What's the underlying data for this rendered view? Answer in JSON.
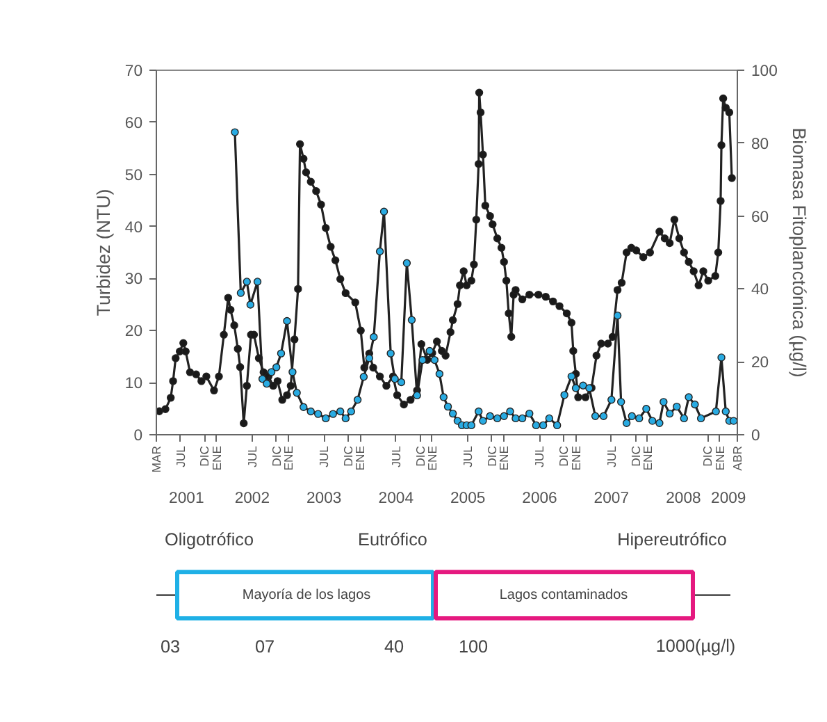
{
  "chart_data": [
    {
      "type": "line",
      "ylabel": "Turbidez (NTU)",
      "y2label": "Biomasa Fitoplanctónica (µg/l)",
      "marker": "circle",
      "xlim": [
        "2001-03-01",
        "2009-04-01"
      ],
      "xticks": [
        {
          "value": "2001-03-01",
          "label": "MAR"
        },
        {
          "value": "2001-07-01",
          "label": "JUL"
        },
        {
          "value": "2001-11-01",
          "label": "DIC"
        },
        {
          "value": "2002-01-01",
          "label": "ENE"
        },
        {
          "value": "2002-07-01",
          "label": "JUL"
        },
        {
          "value": "2002-11-01",
          "label": "DIC"
        },
        {
          "value": "2003-01-01",
          "label": "ENE"
        },
        {
          "value": "2003-07-01",
          "label": "JUL"
        },
        {
          "value": "2003-11-01",
          "label": "DIC"
        },
        {
          "value": "2004-01-01",
          "label": "ENE"
        },
        {
          "value": "2004-07-01",
          "label": "JUL"
        },
        {
          "value": "2004-11-01",
          "label": "DIC"
        },
        {
          "value": "2005-01-01",
          "label": "ENE"
        },
        {
          "value": "2005-07-01",
          "label": "JUL"
        },
        {
          "value": "2005-11-01",
          "label": "DIC"
        },
        {
          "value": "2006-01-01",
          "label": "ENE"
        },
        {
          "value": "2006-07-01",
          "label": "JUL"
        },
        {
          "value": "2006-11-01",
          "label": "DIC"
        },
        {
          "value": "2007-01-01",
          "label": "ENE"
        },
        {
          "value": "2007-07-01",
          "label": "JUL"
        },
        {
          "value": "2007-11-01",
          "label": "DIC"
        },
        {
          "value": "2008-01-01",
          "label": "ENE"
        },
        {
          "value": "2008-11-01",
          "label": "DIC"
        },
        {
          "value": "2009-01-01",
          "label": "ENE"
        },
        {
          "value": "2009-04-01",
          "label": "ABR"
        }
      ],
      "x2lim": [
        "2001-03-01",
        "2009-04-01"
      ],
      "x2ticks": [
        {
          "value": "2001-08-01",
          "label": "2001"
        },
        {
          "value": "2002-07-01",
          "label": "2002"
        },
        {
          "value": "2003-07-01",
          "label": "2003"
        },
        {
          "value": "2004-07-01",
          "label": "2004"
        },
        {
          "value": "2005-07-01",
          "label": "2005"
        },
        {
          "value": "2006-07-01",
          "label": "2006"
        },
        {
          "value": "2007-07-01",
          "label": "2007"
        },
        {
          "value": "2008-07-01",
          "label": "2008"
        },
        {
          "value": "2009-02-15",
          "label": "2009"
        }
      ],
      "ylim": [
        0,
        70
      ],
      "yticks": [
        0,
        10,
        20,
        30,
        40,
        50,
        60,
        70
      ],
      "y2lim": [
        0,
        100
      ],
      "y2ticks": [
        0,
        20,
        40,
        60,
        80,
        100
      ],
      "series": [
        {
          "color": "#1a1a1a",
          "x": [
            "2001-03-16",
            "2001-04-16",
            "2001-05-13",
            "2001-05-25",
            "2001-06-07",
            "2001-06-28",
            "2001-07-16",
            "2001-07-28",
            "2001-08-19",
            "2001-09-19",
            "2001-10-16",
            "2001-11-10",
            "2001-12-19",
            "2002-01-13",
            "2002-02-07",
            "2002-03-01",
            "2002-03-13",
            "2002-04-01",
            "2002-04-19",
            "2002-05-01",
            "2002-05-19",
            "2002-06-04",
            "2002-06-25",
            "2002-07-10",
            "2002-08-04",
            "2002-08-28",
            "2002-09-22",
            "2002-10-16",
            "2002-11-07",
            "2002-12-01",
            "2002-12-25",
            "2003-01-13",
            "2003-02-01",
            "2003-02-19",
            "2003-03-01",
            "2003-03-19",
            "2003-04-01",
            "2003-04-25",
            "2003-05-22",
            "2003-06-16",
            "2003-07-10",
            "2003-08-04",
            "2003-08-28",
            "2003-09-22",
            "2003-10-19",
            "2003-12-07",
            "2004-01-04",
            "2004-01-22",
            "2004-02-16",
            "2004-03-07",
            "2004-04-10",
            "2004-05-13",
            "2004-06-16",
            "2004-07-07",
            "2004-08-10",
            "2004-09-13",
            "2004-10-16",
            "2004-11-07",
            "2004-12-07",
            "2005-01-01",
            "2005-01-25",
            "2005-02-19",
            "2005-03-10",
            "2005-04-04",
            "2005-04-16",
            "2005-05-10",
            "2005-05-22",
            "2005-06-10",
            "2005-06-25",
            "2005-07-19",
            "2005-08-01",
            "2005-08-13",
            "2005-08-25",
            "2005-08-28",
            "2005-09-04",
            "2005-09-16",
            "2005-09-28",
            "2005-10-22",
            "2005-11-04",
            "2005-11-28",
            "2005-12-19",
            "2006-01-01",
            "2006-01-13",
            "2006-01-25",
            "2006-02-07",
            "2006-02-19",
            "2006-03-01",
            "2006-04-04",
            "2006-05-10",
            "2006-06-25",
            "2006-08-01",
            "2006-09-07",
            "2006-10-10",
            "2006-11-16",
            "2006-12-10",
            "2006-12-19",
            "2007-01-01",
            "2007-01-13",
            "2007-02-19",
            "2007-03-22",
            "2007-04-16",
            "2007-05-10",
            "2007-06-13",
            "2007-07-07",
            "2007-08-01",
            "2007-08-22",
            "2007-09-16",
            "2007-10-10",
            "2007-11-04",
            "2007-12-10",
            "2008-01-13",
            "2008-03-01",
            "2008-03-28",
            "2008-04-22",
            "2008-05-16",
            "2008-06-10",
            "2008-07-04",
            "2008-07-28",
            "2008-08-22",
            "2008-09-16",
            "2008-10-10",
            "2008-11-04",
            "2008-12-10",
            "2008-12-25",
            "2009-01-06",
            "2009-01-10",
            "2009-01-19",
            "2009-02-01",
            "2009-02-19",
            "2009-03-04"
          ],
          "values": [
            4.5,
            4.9,
            7.1,
            10.3,
            14.7,
            16,
            17.6,
            16,
            12,
            11.6,
            10.3,
            11.2,
            8.5,
            11.2,
            19.2,
            26.3,
            24,
            21,
            16.5,
            13,
            2.2,
            9.4,
            19.2,
            19.2,
            14.7,
            12,
            11.2,
            9.4,
            10.3,
            6.7,
            7.6,
            9.4,
            18.3,
            28,
            55.8,
            53,
            50.4,
            48.6,
            46.8,
            44.2,
            39.7,
            36.1,
            33.5,
            29.9,
            27.2,
            25.4,
            20,
            12.9,
            15.6,
            12.9,
            11.2,
            9.4,
            11.2,
            7.6,
            5.8,
            6.7,
            8.5,
            17.4,
            14.4,
            15.7,
            17.9,
            16.1,
            15.2,
            19.7,
            22,
            25.1,
            28.7,
            31.4,
            28.7,
            29.6,
            32.7,
            41.3,
            52,
            65.7,
            61.9,
            53.8,
            44,
            42,
            40.4,
            37.7,
            35.9,
            33.2,
            29.6,
            23.3,
            18.8,
            26.9,
            27.8,
            26,
            26.9,
            26.9,
            26.5,
            25.6,
            24.7,
            23.3,
            21.5,
            16.1,
            11.7,
            7.2,
            7.2,
            9,
            15.2,
            17.5,
            17.5,
            18.8,
            27.8,
            29.2,
            35,
            35.9,
            35.4,
            34.1,
            35,
            39,
            37.7,
            36.8,
            41.3,
            37.7,
            35,
            33.2,
            31.4,
            28.7,
            31.4,
            29.6,
            30.5,
            35,
            44.9,
            55.6,
            64.6,
            62.8,
            61.9,
            49.3
          ]
        },
        {
          "color": "#29abe2",
          "axis": "y2",
          "x": [
            "2002-04-04",
            "2002-05-04",
            "2002-06-04",
            "2002-06-22",
            "2002-07-28",
            "2002-08-22",
            "2002-09-13",
            "2002-10-07",
            "2002-11-01",
            "2002-11-25",
            "2002-12-25",
            "2003-01-22",
            "2003-02-13",
            "2003-03-19",
            "2003-04-25",
            "2003-06-01",
            "2003-07-10",
            "2003-08-16",
            "2003-09-22",
            "2003-10-19",
            "2003-11-16",
            "2003-12-19",
            "2004-01-19",
            "2004-02-16",
            "2004-03-10",
            "2004-04-10",
            "2004-05-01",
            "2004-06-04",
            "2004-06-25",
            "2004-07-28",
            "2004-08-25",
            "2004-09-19",
            "2004-10-16",
            "2004-11-13",
            "2004-12-19",
            "2005-01-13",
            "2005-02-07",
            "2005-02-28",
            "2005-03-22",
            "2005-04-16",
            "2005-05-10",
            "2005-06-01",
            "2005-06-25",
            "2005-07-19",
            "2005-08-25",
            "2005-09-16",
            "2005-10-22",
            "2005-11-28",
            "2006-01-01",
            "2006-02-01",
            "2006-03-01",
            "2006-04-04",
            "2006-05-10",
            "2006-06-13",
            "2006-07-19",
            "2006-08-19",
            "2006-09-28",
            "2006-11-04",
            "2006-12-10",
            "2007-01-01",
            "2007-02-07",
            "2007-03-10",
            "2007-04-10",
            "2007-05-22",
            "2007-07-01",
            "2007-08-01",
            "2007-08-19",
            "2007-09-16",
            "2007-10-13",
            "2007-11-19",
            "2007-12-25",
            "2008-01-25",
            "2008-03-01",
            "2008-03-22",
            "2008-04-22",
            "2008-05-28",
            "2008-07-04",
            "2008-07-28",
            "2008-08-28",
            "2008-09-28",
            "2008-12-13",
            "2009-01-10",
            "2009-02-01",
            "2009-02-19",
            "2009-03-13"
          ],
          "values": [
            83,
            38.9,
            42,
            35.7,
            42,
            15.3,
            14,
            17.2,
            18.5,
            22.3,
            31.2,
            17.2,
            11.5,
            7.6,
            6.4,
            5.7,
            4.5,
            5.7,
            6.4,
            4.5,
            6.4,
            9.6,
            15.9,
            21,
            26.8,
            50.3,
            61.2,
            22.3,
            15.3,
            14.4,
            47.1,
            31.5,
            10.8,
            20.5,
            23,
            20.5,
            16.7,
            10.3,
            7.7,
            5.8,
            3.8,
            2.6,
            2.6,
            2.6,
            6.4,
            3.8,
            5.1,
            4.5,
            5.1,
            6.4,
            4.5,
            4.5,
            5.8,
            2.6,
            2.6,
            4.5,
            2.6,
            10.9,
            16,
            12.8,
            13.5,
            12.8,
            5.1,
            5.1,
            9.6,
            32.7,
            9,
            3.2,
            5.1,
            4.5,
            7.1,
            3.8,
            3.2,
            9,
            5.8,
            7.7,
            4.5,
            10.3,
            8.3,
            4.5,
            6.4,
            21.2,
            6.4,
            3.8,
            3.8
          ]
        }
      ]
    },
    {
      "type": "other",
      "annotations": [
        "Oligotrófico",
        "Eutrófico",
        "Hipereutrófico",
        "Mayoría de los lagos",
        "Lagos contaminados",
        "03",
        "07",
        "40",
        "100",
        "1000(µg/l)"
      ]
    }
  ]
}
